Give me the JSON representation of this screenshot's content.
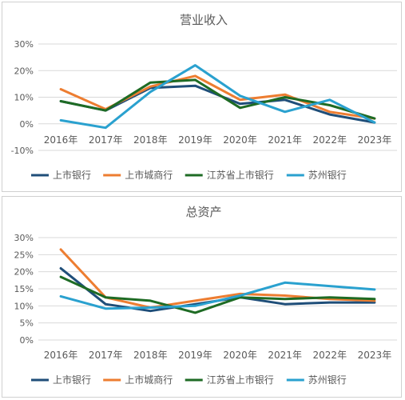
{
  "chart_data": [
    {
      "type": "line",
      "title": "营业收入",
      "categories": [
        "2016年",
        "2017年",
        "2018年",
        "2019年",
        "2020年",
        "2021年",
        "2022年",
        "2023年"
      ],
      "ylim": [
        -10,
        30
      ],
      "yticks": [
        "-10%",
        "0%",
        "10%",
        "20%",
        "30%"
      ],
      "grid": true,
      "legend_position": "bottom",
      "series": [
        {
          "name": "上市银行",
          "color": "#1f4e79",
          "values": [
            8.5,
            5.0,
            13.5,
            14.3,
            7.5,
            9.0,
            3.5,
            0.5
          ]
        },
        {
          "name": "上市城商行",
          "color": "#ed7d31",
          "values": [
            13.0,
            5.5,
            14.0,
            18.0,
            9.0,
            11.0,
            4.5,
            2.0
          ]
        },
        {
          "name": "江苏省上市银行",
          "color": "#1e6b24",
          "values": [
            8.5,
            5.0,
            15.5,
            16.5,
            6.0,
            10.0,
            7.0,
            2.0
          ]
        },
        {
          "name": "苏州银行",
          "color": "#2aa1cf",
          "values": [
            1.3,
            -1.5,
            12.0,
            22.0,
            10.5,
            4.5,
            9.0,
            0.5
          ]
        }
      ]
    },
    {
      "type": "line",
      "title": "总资产",
      "categories": [
        "2016年",
        "2017年",
        "2018年",
        "2019年",
        "2020年",
        "2021年",
        "2022年",
        "2023年"
      ],
      "ylim": [
        0,
        30
      ],
      "yticks": [
        "0%",
        "5%",
        "10%",
        "15%",
        "20%",
        "25%",
        "30%"
      ],
      "grid": true,
      "legend_position": "bottom",
      "series": [
        {
          "name": "上市银行",
          "color": "#1f4e79",
          "values": [
            21.0,
            10.5,
            8.5,
            10.5,
            12.5,
            10.5,
            11.0,
            11.0
          ]
        },
        {
          "name": "上市城商行",
          "color": "#ed7d31",
          "values": [
            26.5,
            12.5,
            9.5,
            11.5,
            13.5,
            13.0,
            12.0,
            11.5
          ]
        },
        {
          "name": "江苏省上市银行",
          "color": "#1e6b24",
          "values": [
            18.5,
            12.5,
            11.5,
            8.0,
            12.5,
            12.0,
            12.5,
            12.0
          ]
        },
        {
          "name": "苏州银行",
          "color": "#2aa1cf",
          "values": [
            12.8,
            9.2,
            9.5,
            10.0,
            13.0,
            16.8,
            15.8,
            14.8
          ]
        }
      ]
    }
  ]
}
